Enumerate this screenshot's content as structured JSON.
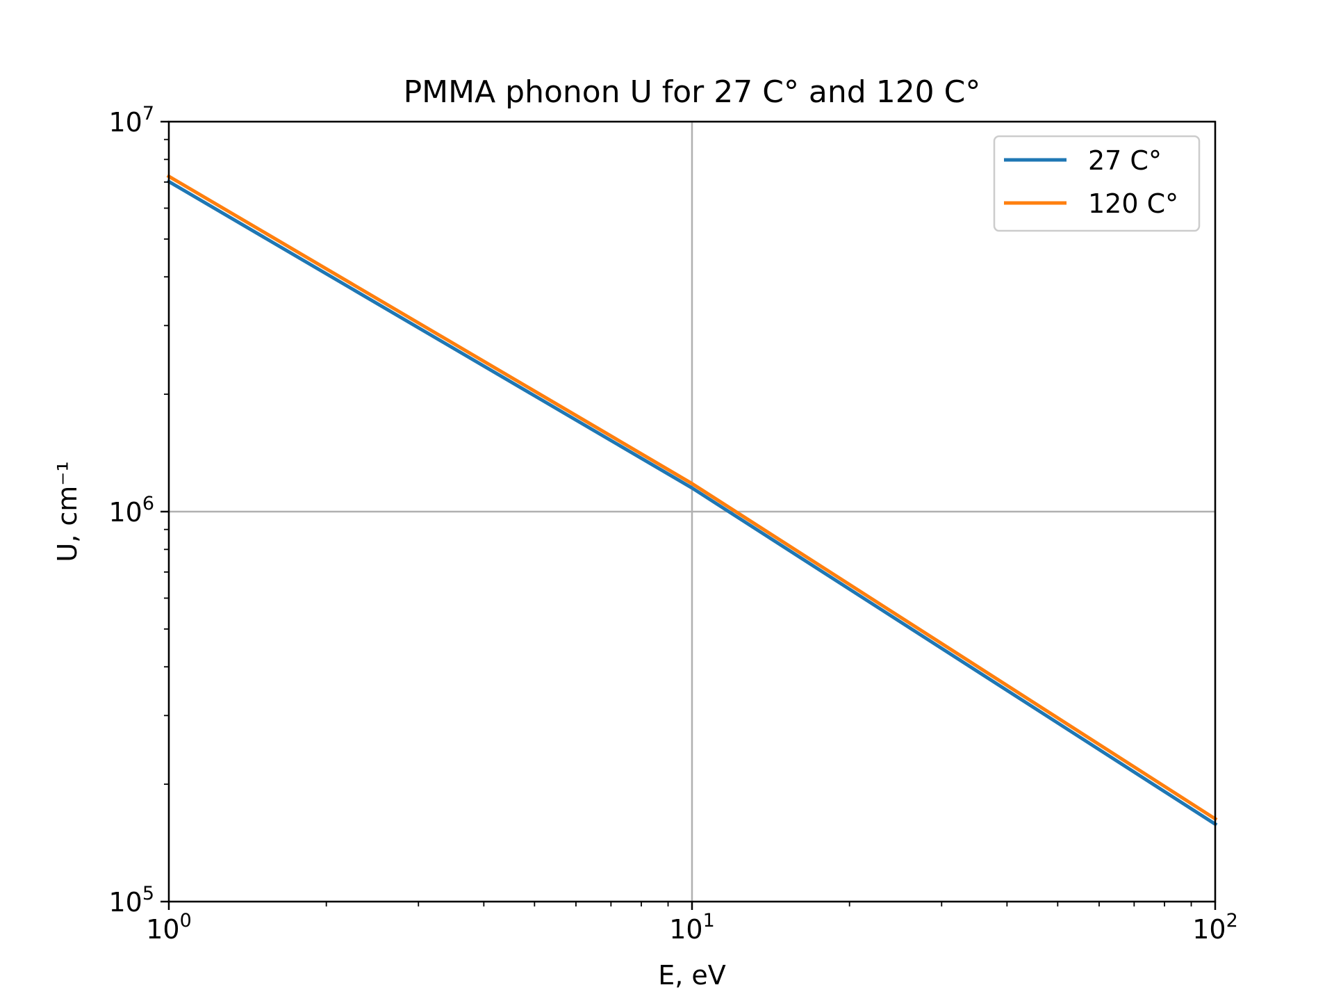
{
  "chart_data": {
    "type": "line",
    "title": "PMMA phonon U for 27 C° and 120 C°",
    "xlabel": "E, eV",
    "ylabel": "U, cm⁻¹",
    "xscale": "log",
    "yscale": "log",
    "xlim": [
      1,
      100
    ],
    "ylim": [
      100000,
      10000000
    ],
    "x_ticks": [
      {
        "value": 1,
        "base": "10",
        "exp": "0"
      },
      {
        "value": 10,
        "base": "10",
        "exp": "1"
      },
      {
        "value": 100,
        "base": "10",
        "exp": "2"
      }
    ],
    "y_ticks": [
      {
        "value": 100000,
        "base": "10",
        "exp": "5"
      },
      {
        "value": 1000000,
        "base": "10",
        "exp": "6"
      },
      {
        "value": 10000000,
        "base": "10",
        "exp": "7"
      }
    ],
    "grid": true,
    "legend_position": "top-right",
    "series": [
      {
        "name": "27 C°",
        "color": "#1f77b4",
        "x": [
          1,
          10,
          100
        ],
        "values": [
          7020000,
          1150000,
          158000
        ]
      },
      {
        "name": "120 C°",
        "color": "#ff7f0e",
        "x": [
          1,
          10,
          100
        ],
        "values": [
          7240000,
          1180000,
          163000
        ]
      }
    ]
  }
}
